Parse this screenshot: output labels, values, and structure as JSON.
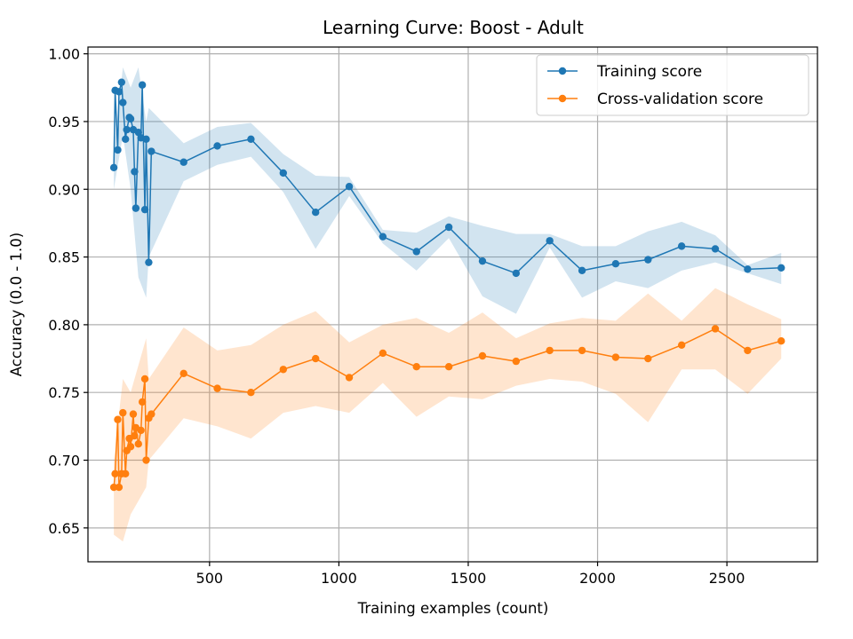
{
  "chart_data": {
    "type": "line",
    "title": "Learning Curve: Boost - Adult",
    "xlabel": "Training examples (count)",
    "ylabel": "Accuracy (0.0 - 1.0)",
    "xlim": [
      30,
      2850
    ],
    "ylim": [
      0.625,
      1.005
    ],
    "xticks": [
      500,
      1000,
      1500,
      2000,
      2500
    ],
    "yticks": [
      0.65,
      0.7,
      0.75,
      0.8,
      0.85,
      0.9,
      0.95,
      1.0
    ],
    "xtick_labels": [
      "500",
      "1000",
      "1500",
      "2000",
      "2500"
    ],
    "ytick_labels": [
      "0.65",
      "0.70",
      "0.75",
      "0.80",
      "0.85",
      "0.90",
      "0.95",
      "1.00"
    ],
    "grid": true,
    "legend_position": "top-right",
    "series": [
      {
        "name": "Training score",
        "color": "#1f77b4",
        "band_color": "#1f77b4",
        "x": [
          130,
          135,
          145,
          150,
          160,
          165,
          175,
          180,
          190,
          195,
          205,
          210,
          215,
          225,
          235,
          240,
          250,
          255,
          265,
          275,
          400,
          530,
          660,
          785,
          910,
          1040,
          1170,
          1300,
          1425,
          1555,
          1685,
          1815,
          1940,
          2070,
          2195,
          2325,
          2455,
          2580,
          2710
        ],
        "y": [
          0.916,
          0.973,
          0.929,
          0.972,
          0.979,
          0.964,
          0.937,
          0.944,
          0.953,
          0.952,
          0.944,
          0.913,
          0.886,
          0.942,
          0.938,
          0.977,
          0.885,
          0.937,
          0.846,
          0.928,
          0.92,
          0.932,
          0.937,
          0.912,
          0.883,
          0.902,
          0.865,
          0.854,
          0.872,
          0.847,
          0.838,
          0.862,
          0.84,
          0.845,
          0.848,
          0.858,
          0.856,
          0.841,
          0.842
        ],
        "band_x": [
          130,
          165,
          195,
          225,
          255,
          265,
          400,
          530,
          660,
          785,
          910,
          1040,
          1170,
          1300,
          1425,
          1555,
          1685,
          1815,
          1940,
          2070,
          2195,
          2325,
          2455,
          2580,
          2710
        ],
        "band_upper": [
          0.93,
          0.99,
          0.975,
          0.99,
          0.95,
          0.96,
          0.934,
          0.946,
          0.949,
          0.926,
          0.91,
          0.909,
          0.87,
          0.868,
          0.88,
          0.873,
          0.867,
          0.867,
          0.858,
          0.858,
          0.869,
          0.876,
          0.866,
          0.844,
          0.853
        ],
        "band_lower": [
          0.9,
          0.94,
          0.9,
          0.835,
          0.82,
          0.85,
          0.906,
          0.918,
          0.924,
          0.898,
          0.856,
          0.895,
          0.86,
          0.84,
          0.864,
          0.821,
          0.808,
          0.857,
          0.82,
          0.832,
          0.827,
          0.84,
          0.846,
          0.838,
          0.83
        ]
      },
      {
        "name": "Cross-validation score",
        "color": "#ff7f0e",
        "band_color": "#ff7f0e",
        "x": [
          130,
          135,
          145,
          150,
          160,
          165,
          175,
          180,
          190,
          195,
          205,
          210,
          215,
          225,
          235,
          240,
          250,
          255,
          265,
          275,
          400,
          530,
          660,
          785,
          910,
          1040,
          1170,
          1300,
          1425,
          1555,
          1685,
          1815,
          1940,
          2070,
          2195,
          2325,
          2455,
          2580,
          2710
        ],
        "y": [
          0.68,
          0.69,
          0.73,
          0.68,
          0.69,
          0.735,
          0.69,
          0.707,
          0.716,
          0.71,
          0.734,
          0.718,
          0.724,
          0.712,
          0.722,
          0.743,
          0.76,
          0.7,
          0.731,
          0.734,
          0.764,
          0.753,
          0.75,
          0.767,
          0.775,
          0.761,
          0.779,
          0.769,
          0.769,
          0.777,
          0.773,
          0.781,
          0.781,
          0.776,
          0.775,
          0.785,
          0.797,
          0.781,
          0.788
        ],
        "band_x": [
          130,
          165,
          195,
          225,
          255,
          265,
          400,
          530,
          660,
          785,
          910,
          1040,
          1170,
          1300,
          1425,
          1555,
          1685,
          1815,
          1940,
          2070,
          2195,
          2325,
          2455,
          2580,
          2710
        ],
        "band_upper": [
          0.7,
          0.76,
          0.75,
          0.77,
          0.79,
          0.76,
          0.798,
          0.781,
          0.785,
          0.8,
          0.81,
          0.787,
          0.8,
          0.805,
          0.794,
          0.809,
          0.79,
          0.801,
          0.805,
          0.803,
          0.823,
          0.803,
          0.827,
          0.815,
          0.804
        ],
        "band_lower": [
          0.645,
          0.64,
          0.66,
          0.67,
          0.68,
          0.7,
          0.731,
          0.725,
          0.716,
          0.735,
          0.74,
          0.735,
          0.757,
          0.732,
          0.747,
          0.745,
          0.755,
          0.76,
          0.758,
          0.749,
          0.728,
          0.767,
          0.767,
          0.749,
          0.775
        ]
      }
    ]
  }
}
